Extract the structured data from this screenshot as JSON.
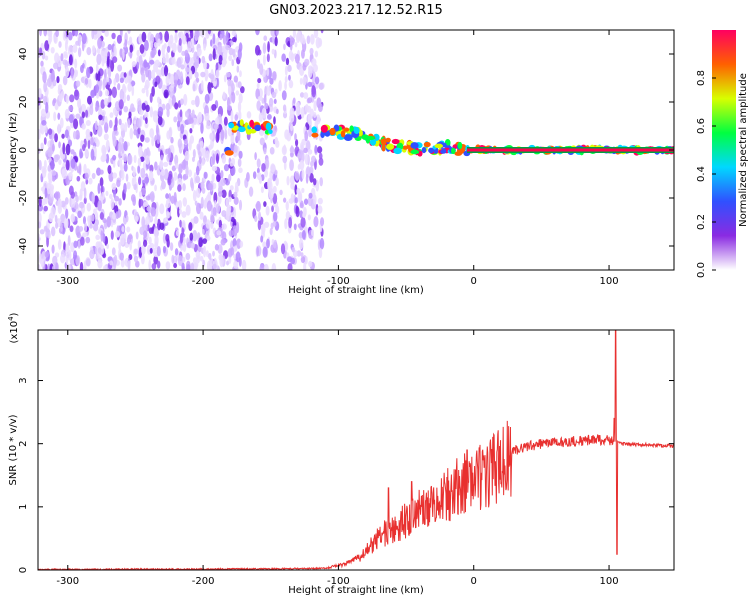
{
  "title": "GN03.2023.217.12.52.R15",
  "chart_data": [
    {
      "type": "heatmap",
      "title": "GN03.2023.217.12.52.R15",
      "xlabel": "Height of straight line (km)",
      "ylabel": "Frequency (Hz)",
      "xlim": [
        -322,
        148
      ],
      "ylim": [
        -50,
        50
      ],
      "x_ticks": [
        -300,
        -200,
        -100,
        0,
        100
      ],
      "x_tick_labels": [
        "-300",
        "-200",
        "-100",
        "0",
        "100"
      ],
      "y_ticks": [
        -40,
        -20,
        0,
        20,
        40
      ],
      "y_tick_labels": [
        "-40",
        "-20",
        "0",
        "20",
        "40"
      ],
      "colorbar": {
        "label": "Normalized spectral amplitude",
        "range": [
          0,
          1
        ],
        "ticks": [
          0,
          0.2,
          0.4,
          0.6,
          0.8
        ],
        "tick_labels": [
          "0.0",
          "0.2",
          "0.4",
          "0.6",
          "0.8"
        ],
        "colors": [
          "#ffffff",
          "#8a2be2",
          "#3050ff",
          "#00d8ff",
          "#00ff40",
          "#d8ff00",
          "#ff6000",
          "#ff0060"
        ]
      },
      "noise_extent_x": [
        -322,
        -110
      ],
      "noise_gaps_x": [
        [
          -172,
          -160
        ],
        [
          -145,
          -140
        ],
        [
          -112,
          -108
        ]
      ],
      "signal_track": [
        {
          "x": -180,
          "f": 9
        },
        {
          "x": -170,
          "f": 9.5
        },
        {
          "x": -160,
          "f": 9
        },
        {
          "x": -150,
          "f": 9
        },
        {
          "x": -115,
          "f": 8
        },
        {
          "x": -100,
          "f": 7.5
        },
        {
          "x": -90,
          "f": 7
        },
        {
          "x": -80,
          "f": 5
        },
        {
          "x": -70,
          "f": 3
        },
        {
          "x": -60,
          "f": 2
        },
        {
          "x": -50,
          "f": 1
        },
        {
          "x": -40,
          "f": 0.5
        },
        {
          "x": -30,
          "f": 0.2
        },
        {
          "x": -20,
          "f": 1.5
        },
        {
          "x": -10,
          "f": 0
        },
        {
          "x": 0,
          "f": 0
        },
        {
          "x": 148,
          "f": 0
        }
      ],
      "line_frequency": 0,
      "grid": false
    },
    {
      "type": "line",
      "xlabel": "Height of straight line (km)",
      "ylabel": "SNR (10 * v/v)",
      "y_scale_label": "(x10",
      "y_scale_exp": "4",
      "y_scale_close": ")",
      "xlim": [
        -322,
        148
      ],
      "ylim": [
        0,
        3.8
      ],
      "x_ticks": [
        -300,
        -200,
        -100,
        0,
        100
      ],
      "x_tick_labels": [
        "-300",
        "-200",
        "-100",
        "0",
        "100"
      ],
      "y_ticks": [
        0,
        1,
        2,
        3
      ],
      "y_tick_labels": [
        "0",
        "1",
        "2",
        "3"
      ],
      "grid": false,
      "series": [
        {
          "color": "#e8302f",
          "envelope": [
            {
              "x": -322,
              "y": 0.01
            },
            {
              "x": -150,
              "y": 0.02
            },
            {
              "x": -110,
              "y": 0.03
            },
            {
              "x": -95,
              "y": 0.1
            },
            {
              "x": -85,
              "y": 0.2
            },
            {
              "x": -75,
              "y": 0.45
            },
            {
              "x": -65,
              "y": 0.65
            },
            {
              "x": -55,
              "y": 0.75
            },
            {
              "x": -45,
              "y": 0.95
            },
            {
              "x": -35,
              "y": 1.05
            },
            {
              "x": -25,
              "y": 1.2
            },
            {
              "x": -15,
              "y": 1.35
            },
            {
              "x": -5,
              "y": 1.5
            },
            {
              "x": 5,
              "y": 1.55
            },
            {
              "x": 15,
              "y": 1.7
            },
            {
              "x": 25,
              "y": 1.85
            },
            {
              "x": 35,
              "y": 1.95
            },
            {
              "x": 50,
              "y": 2.02
            },
            {
              "x": 70,
              "y": 2.05
            },
            {
              "x": 90,
              "y": 2.08
            },
            {
              "x": 100,
              "y": 2.08
            },
            {
              "x": 110,
              "y": 2.0
            },
            {
              "x": 148,
              "y": 1.97
            }
          ],
          "peaks": [
            {
              "x": -63,
              "y": 1.3
            },
            {
              "x": -46,
              "y": 1.4
            },
            {
              "x": -5,
              "y": 1.9
            },
            {
              "x": 104,
              "y": 2.4
            },
            {
              "x": 105,
              "y": 3.8
            },
            {
              "x": 106,
              "y": 0.25
            }
          ]
        }
      ]
    }
  ]
}
